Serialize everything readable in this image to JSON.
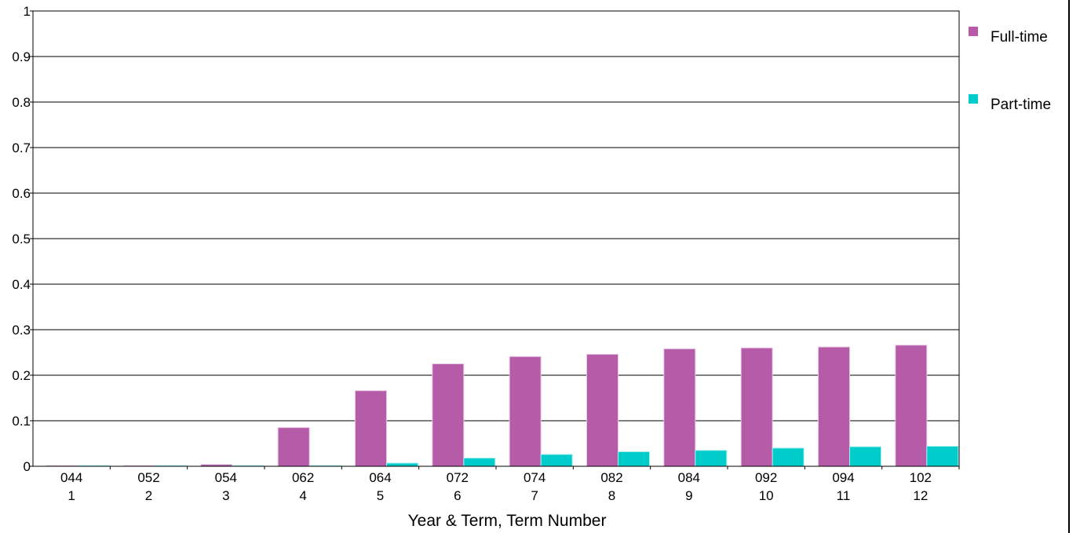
{
  "chart_data": {
    "type": "bar",
    "title": "",
    "xlabel": "Year & Term, Term Number",
    "ylabel": "",
    "ylim": [
      0,
      1
    ],
    "yticks": [
      "0",
      "0.1",
      "0.2",
      "0.3",
      "0.4",
      "0.5",
      "0.6",
      "0.7",
      "0.8",
      "0.9",
      "1"
    ],
    "grid": true,
    "legend_position": "right",
    "categories": [
      {
        "term": "044",
        "number": "1"
      },
      {
        "term": "052",
        "number": "2"
      },
      {
        "term": "054",
        "number": "3"
      },
      {
        "term": "062",
        "number": "4"
      },
      {
        "term": "064",
        "number": "5"
      },
      {
        "term": "072",
        "number": "6"
      },
      {
        "term": "074",
        "number": "7"
      },
      {
        "term": "082",
        "number": "8"
      },
      {
        "term": "084",
        "number": "9"
      },
      {
        "term": "092",
        "number": "10"
      },
      {
        "term": "094",
        "number": "11"
      },
      {
        "term": "102",
        "number": "12"
      }
    ],
    "series": [
      {
        "name": "Full-time",
        "color": "#b55ba8",
        "values": [
          0.0,
          0.0,
          0.004,
          0.085,
          0.166,
          0.225,
          0.241,
          0.246,
          0.258,
          0.26,
          0.262,
          0.266
        ]
      },
      {
        "name": "Part-time",
        "color": "#00cccc",
        "values": [
          0.0,
          0.0,
          0.0,
          0.0,
          0.007,
          0.018,
          0.026,
          0.032,
          0.035,
          0.04,
          0.043,
          0.044
        ]
      }
    ]
  }
}
